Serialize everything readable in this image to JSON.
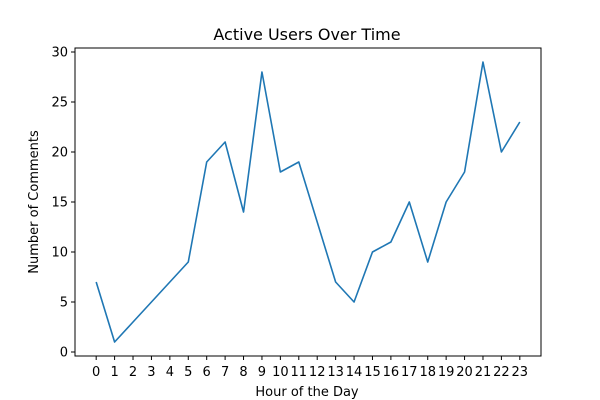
{
  "chart_data": {
    "type": "line",
    "title": "Active Users Over Time",
    "xlabel": "Hour of the Day",
    "ylabel": "Number of Comments",
    "x": [
      0,
      1,
      2,
      3,
      4,
      5,
      6,
      7,
      8,
      9,
      10,
      11,
      12,
      13,
      14,
      15,
      16,
      17,
      18,
      19,
      20,
      21,
      22,
      23
    ],
    "x_tick_labels": [
      "0",
      "1",
      "2",
      "3",
      "4",
      "5",
      "6",
      "7",
      "8",
      "9",
      "10",
      "11",
      "12",
      "13",
      "14",
      "15",
      "16",
      "17",
      "18",
      "19",
      "20",
      "21",
      "22",
      "23"
    ],
    "series": [
      {
        "values": [
          7,
          1,
          3,
          5,
          7,
          9,
          19,
          21,
          14,
          28,
          18,
          19,
          13,
          7,
          5,
          10,
          11,
          15,
          9,
          15,
          18,
          29,
          20,
          23
        ],
        "color": "#1f77b4"
      }
    ],
    "xlim": [
      -1.15,
      24.15
    ],
    "ylim": [
      -0.4,
      30.4
    ],
    "y_ticks": [
      0,
      5,
      10,
      15,
      20,
      25,
      30
    ],
    "y_tick_labels": [
      "0",
      "5",
      "10",
      "15",
      "20",
      "25",
      "30"
    ],
    "grid": false,
    "legend": "none"
  }
}
